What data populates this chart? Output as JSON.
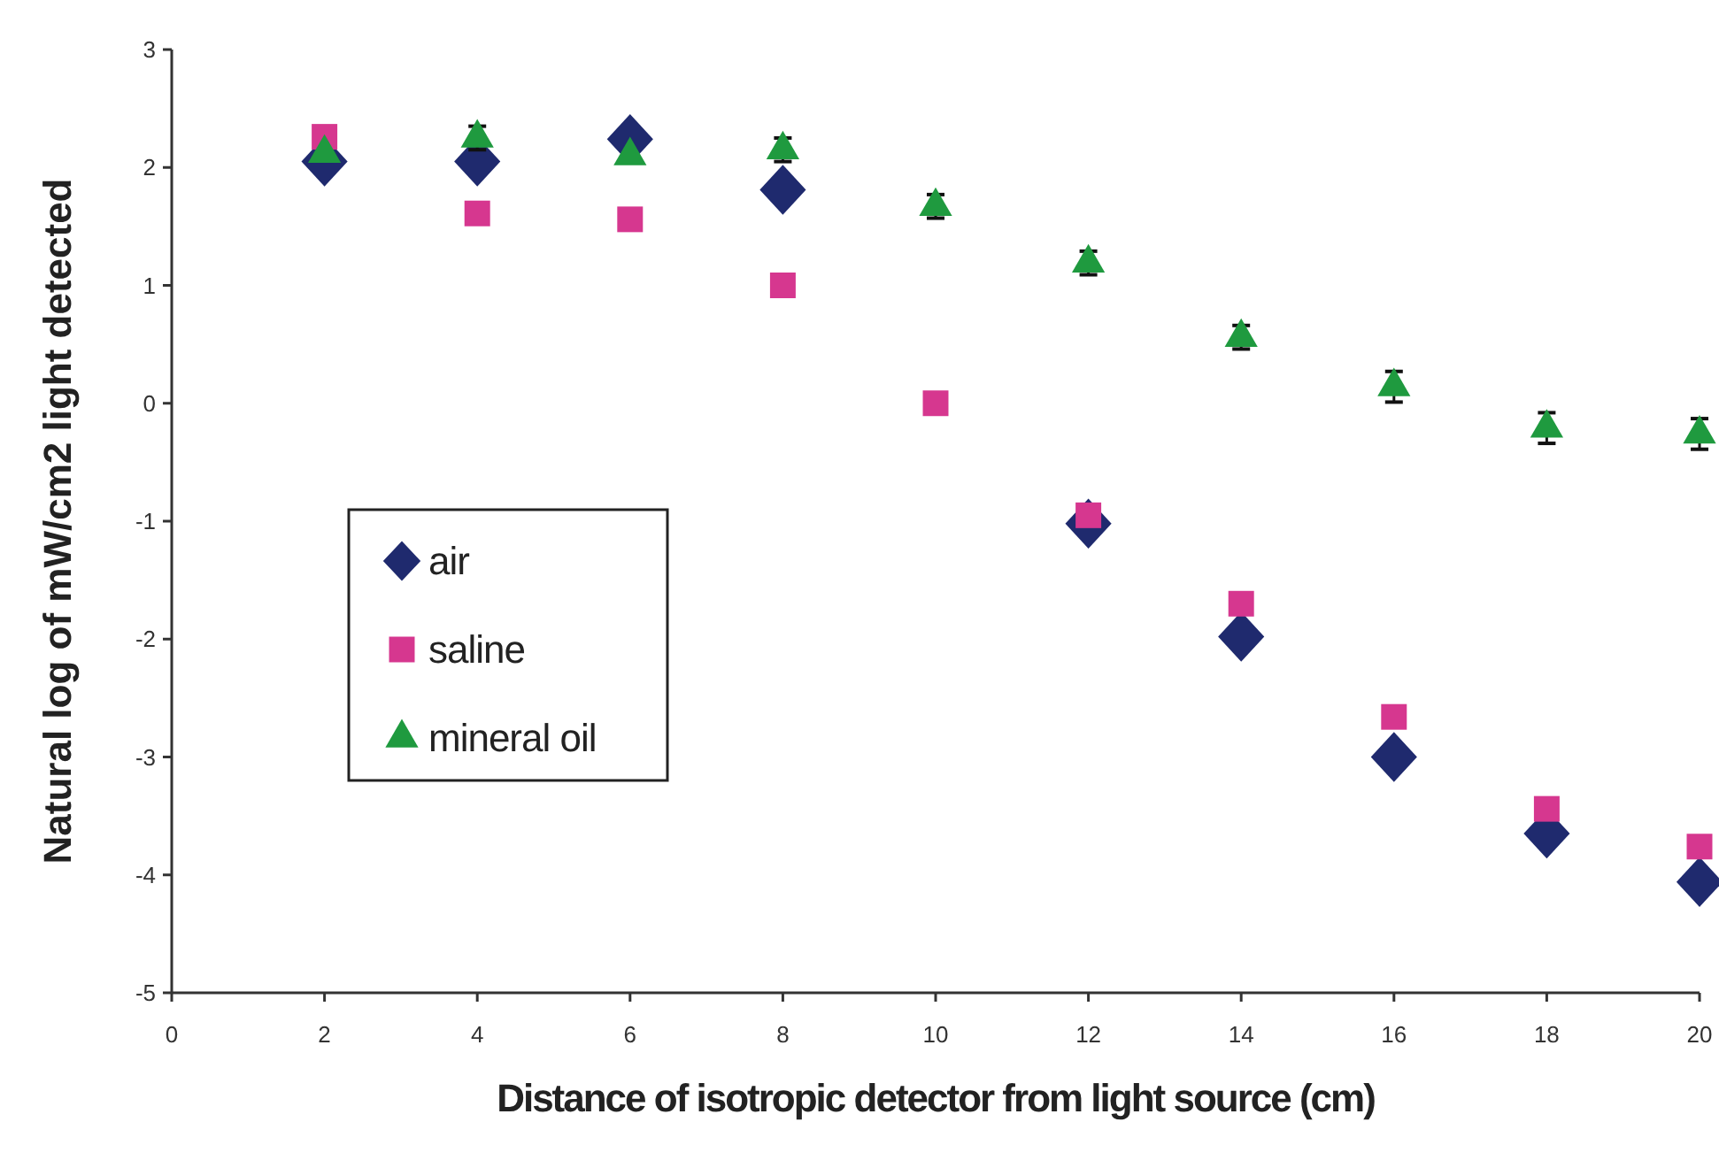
{
  "chart_data": {
    "type": "scatter",
    "xlabel": "Distance of isotropic detector from light source (cm)",
    "ylabel": "Natural log of mW/cm2 light detected",
    "x": [
      2,
      4,
      6,
      8,
      10,
      12,
      14,
      16,
      18,
      20
    ],
    "xlim": [
      0,
      20
    ],
    "xticks": [
      0,
      2,
      4,
      6,
      8,
      10,
      12,
      14,
      16,
      18,
      20
    ],
    "ylim": [
      -5,
      3
    ],
    "yticks": [
      -5,
      -4,
      -3,
      -2,
      -1,
      0,
      1,
      2,
      3
    ],
    "grid": false,
    "legend": "left",
    "series": [
      {
        "name": "air",
        "color": "#1f2a6e",
        "marker": "diamond",
        "values": [
          2.05,
          2.05,
          2.24,
          1.81,
          null,
          -1.02,
          -1.98,
          -3.0,
          -3.65,
          -4.06
        ]
      },
      {
        "name": "saline",
        "color": "#d6378f",
        "marker": "square",
        "values": [
          2.26,
          1.61,
          1.56,
          1.0,
          0,
          -0.95,
          -1.7,
          -2.66,
          -3.44,
          -3.76
        ]
      },
      {
        "name": "mineral oil",
        "color": "#1f9a3f",
        "marker": "triangle",
        "values": [
          2.12,
          2.25,
          2.1,
          2.15,
          1.67,
          1.19,
          0.56,
          0.14,
          -0.21,
          -0.26
        ],
        "errors": [
          null,
          0.1,
          null,
          0.1,
          0.1,
          0.1,
          0.1,
          0.13,
          0.13,
          0.13
        ]
      }
    ]
  }
}
